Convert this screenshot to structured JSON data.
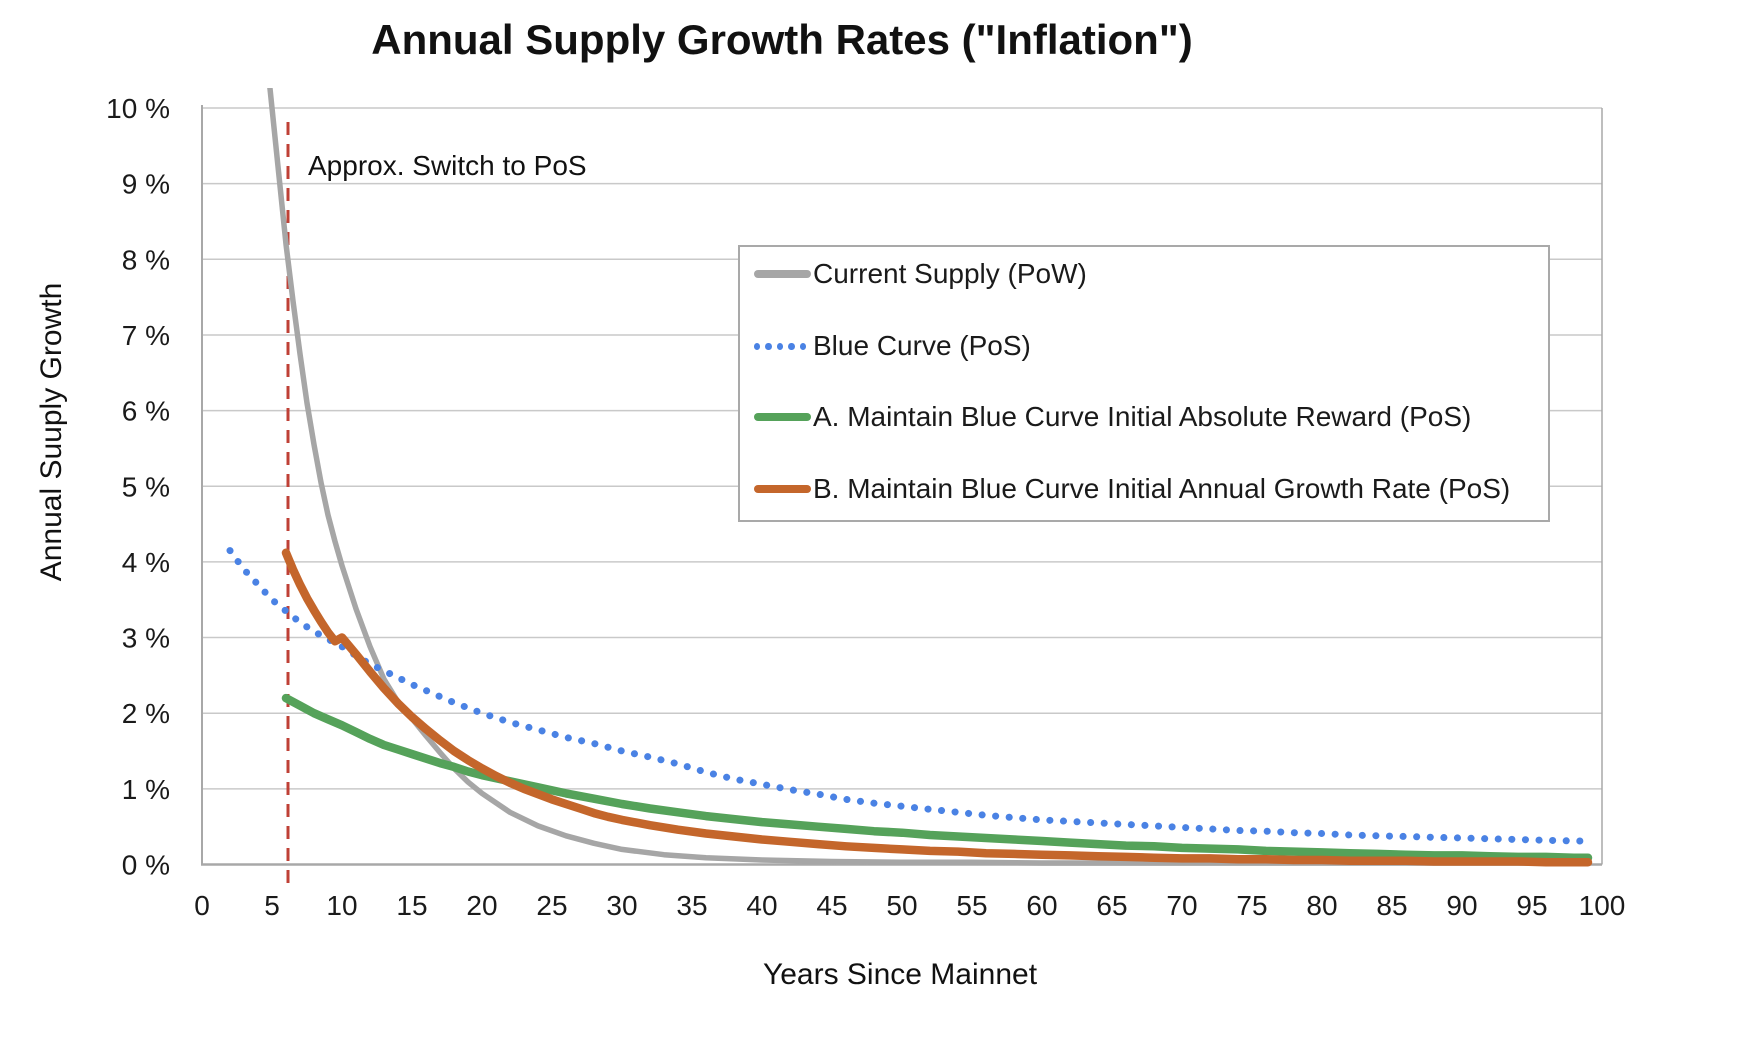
{
  "chart_data": {
    "type": "line",
    "title": "Annual Supply Growth Rates (\"Inflation\")",
    "xlabel": "Years Since Mainnet",
    "ylabel": "Annual Suuply Growth",
    "xlim": [
      0,
      100
    ],
    "ylim": [
      0,
      10
    ],
    "x_ticks": [
      0,
      5,
      10,
      15,
      20,
      25,
      30,
      35,
      40,
      45,
      50,
      55,
      60,
      65,
      70,
      75,
      80,
      85,
      90,
      95,
      100
    ],
    "y_ticks": [
      0,
      1,
      2,
      3,
      4,
      5,
      6,
      7,
      8,
      9,
      10
    ],
    "y_tick_suffix": " %",
    "grid": "horizontal",
    "legend_position": "upper-right-inside",
    "colors": {
      "gridline": "#c9c9c9",
      "axis": "#a8a8a8",
      "text": "#1a1a1a",
      "annotation_line": "#bf4036"
    },
    "annotation": {
      "label": "Approx. Switch to PoS",
      "x": 6,
      "line_style": "dashed-vertical"
    },
    "series": [
      {
        "name": "Current Supply (PoW)",
        "color": "#a6a6a6",
        "style": "solid",
        "stroke_width": 5.5,
        "points": [
          [
            4.75,
            10.45
          ],
          [
            5,
            10.0
          ],
          [
            5.5,
            9.1
          ],
          [
            6,
            8.2
          ],
          [
            6.5,
            7.45
          ],
          [
            7,
            6.75
          ],
          [
            7.5,
            6.1
          ],
          [
            8,
            5.55
          ],
          [
            8.5,
            5.05
          ],
          [
            9,
            4.62
          ],
          [
            9.5,
            4.27
          ],
          [
            10,
            3.95
          ],
          [
            11,
            3.38
          ],
          [
            12,
            2.88
          ],
          [
            13,
            2.45
          ],
          [
            14,
            2.15
          ],
          [
            15,
            1.93
          ],
          [
            16,
            1.7
          ],
          [
            17,
            1.48
          ],
          [
            18,
            1.27
          ],
          [
            19,
            1.09
          ],
          [
            20,
            0.94
          ],
          [
            22,
            0.69
          ],
          [
            24,
            0.51
          ],
          [
            26,
            0.38
          ],
          [
            28,
            0.28
          ],
          [
            30,
            0.2
          ],
          [
            33,
            0.13
          ],
          [
            36,
            0.09
          ],
          [
            40,
            0.06
          ],
          [
            45,
            0.04
          ],
          [
            50,
            0.03
          ],
          [
            55,
            0.03
          ],
          [
            60,
            0.02
          ],
          [
            70,
            0.02
          ],
          [
            80,
            0.02
          ],
          [
            90,
            0.02
          ],
          [
            99,
            0.02
          ]
        ]
      },
      {
        "name": "Blue Curve (PoS)",
        "color": "#4a82e4",
        "style": "dotted",
        "stroke_width": 7,
        "points": [
          [
            2,
            4.15
          ],
          [
            3,
            3.9
          ],
          [
            4,
            3.7
          ],
          [
            5,
            3.5
          ],
          [
            6,
            3.35
          ],
          [
            7,
            3.2
          ],
          [
            8,
            3.08
          ],
          [
            9,
            2.98
          ],
          [
            10,
            2.88
          ],
          [
            11,
            2.76
          ],
          [
            12,
            2.65
          ],
          [
            13,
            2.56
          ],
          [
            14,
            2.47
          ],
          [
            15,
            2.38
          ],
          [
            16,
            2.3
          ],
          [
            17,
            2.22
          ],
          [
            18,
            2.14
          ],
          [
            19,
            2.07
          ],
          [
            20,
            2.0
          ],
          [
            22,
            1.88
          ],
          [
            24,
            1.78
          ],
          [
            26,
            1.68
          ],
          [
            28,
            1.6
          ],
          [
            30,
            1.5
          ],
          [
            32,
            1.42
          ],
          [
            34,
            1.33
          ],
          [
            36,
            1.22
          ],
          [
            38,
            1.13
          ],
          [
            40,
            1.06
          ],
          [
            42,
            0.99
          ],
          [
            44,
            0.93
          ],
          [
            46,
            0.86
          ],
          [
            48,
            0.81
          ],
          [
            50,
            0.77
          ],
          [
            52,
            0.73
          ],
          [
            54,
            0.69
          ],
          [
            56,
            0.65
          ],
          [
            58,
            0.62
          ],
          [
            60,
            0.59
          ],
          [
            62,
            0.57
          ],
          [
            64,
            0.55
          ],
          [
            66,
            0.53
          ],
          [
            68,
            0.51
          ],
          [
            70,
            0.49
          ],
          [
            72,
            0.47
          ],
          [
            74,
            0.45
          ],
          [
            76,
            0.44
          ],
          [
            78,
            0.42
          ],
          [
            80,
            0.41
          ],
          [
            82,
            0.39
          ],
          [
            84,
            0.38
          ],
          [
            86,
            0.37
          ],
          [
            88,
            0.36
          ],
          [
            90,
            0.35
          ],
          [
            92,
            0.34
          ],
          [
            94,
            0.33
          ],
          [
            96,
            0.32
          ],
          [
            98,
            0.31
          ],
          [
            99,
            0.31
          ]
        ]
      },
      {
        "name": "A. Maintain Blue Curve Initial Absolute Reward (PoS)",
        "color": "#55a25a",
        "style": "solid",
        "stroke_width": 8.5,
        "points": [
          [
            6,
            2.2
          ],
          [
            7,
            2.1
          ],
          [
            8,
            2.0
          ],
          [
            9,
            1.92
          ],
          [
            10,
            1.84
          ],
          [
            11,
            1.75
          ],
          [
            12,
            1.66
          ],
          [
            13,
            1.58
          ],
          [
            14,
            1.52
          ],
          [
            15,
            1.46
          ],
          [
            16,
            1.4
          ],
          [
            17,
            1.34
          ],
          [
            18,
            1.29
          ],
          [
            19,
            1.23
          ],
          [
            20,
            1.18
          ],
          [
            22,
            1.1
          ],
          [
            24,
            1.02
          ],
          [
            26,
            0.94
          ],
          [
            28,
            0.87
          ],
          [
            30,
            0.8
          ],
          [
            32,
            0.74
          ],
          [
            34,
            0.69
          ],
          [
            36,
            0.64
          ],
          [
            38,
            0.6
          ],
          [
            40,
            0.56
          ],
          [
            42,
            0.53
          ],
          [
            44,
            0.5
          ],
          [
            46,
            0.47
          ],
          [
            48,
            0.44
          ],
          [
            50,
            0.42
          ],
          [
            52,
            0.39
          ],
          [
            54,
            0.37
          ],
          [
            56,
            0.35
          ],
          [
            58,
            0.33
          ],
          [
            60,
            0.31
          ],
          [
            62,
            0.29
          ],
          [
            64,
            0.27
          ],
          [
            66,
            0.25
          ],
          [
            68,
            0.24
          ],
          [
            70,
            0.22
          ],
          [
            72,
            0.21
          ],
          [
            74,
            0.2
          ],
          [
            76,
            0.18
          ],
          [
            78,
            0.17
          ],
          [
            80,
            0.16
          ],
          [
            82,
            0.15
          ],
          [
            84,
            0.14
          ],
          [
            86,
            0.13
          ],
          [
            88,
            0.12
          ],
          [
            90,
            0.12
          ],
          [
            92,
            0.11
          ],
          [
            94,
            0.1
          ],
          [
            96,
            0.1
          ],
          [
            98,
            0.09
          ],
          [
            99,
            0.09
          ]
        ]
      },
      {
        "name": "B. Maintain Blue Curve Initial Annual Growth Rate (PoS)",
        "color": "#c4662b",
        "style": "solid",
        "stroke_width": 8.5,
        "points": [
          [
            6,
            4.12
          ],
          [
            6.5,
            3.9
          ],
          [
            7,
            3.7
          ],
          [
            7.5,
            3.52
          ],
          [
            8,
            3.36
          ],
          [
            8.5,
            3.21
          ],
          [
            9,
            3.07
          ],
          [
            9.5,
            2.95
          ],
          [
            10,
            3.0
          ],
          [
            11,
            2.78
          ],
          [
            12,
            2.55
          ],
          [
            13,
            2.33
          ],
          [
            14,
            2.13
          ],
          [
            15,
            1.95
          ],
          [
            16,
            1.79
          ],
          [
            17,
            1.64
          ],
          [
            18,
            1.5
          ],
          [
            19,
            1.38
          ],
          [
            20,
            1.27
          ],
          [
            21,
            1.17
          ],
          [
            22,
            1.08
          ],
          [
            23,
            1.0
          ],
          [
            24,
            0.93
          ],
          [
            25,
            0.86
          ],
          [
            26,
            0.8
          ],
          [
            27,
            0.74
          ],
          [
            28,
            0.68
          ],
          [
            29,
            0.63
          ],
          [
            30,
            0.59
          ],
          [
            32,
            0.52
          ],
          [
            34,
            0.46
          ],
          [
            36,
            0.41
          ],
          [
            38,
            0.37
          ],
          [
            40,
            0.33
          ],
          [
            42,
            0.3
          ],
          [
            44,
            0.27
          ],
          [
            46,
            0.24
          ],
          [
            48,
            0.22
          ],
          [
            50,
            0.2
          ],
          [
            52,
            0.18
          ],
          [
            54,
            0.17
          ],
          [
            56,
            0.15
          ],
          [
            58,
            0.14
          ],
          [
            60,
            0.13
          ],
          [
            62,
            0.12
          ],
          [
            64,
            0.11
          ],
          [
            66,
            0.1
          ],
          [
            68,
            0.09
          ],
          [
            70,
            0.08
          ],
          [
            72,
            0.08
          ],
          [
            74,
            0.07
          ],
          [
            76,
            0.07
          ],
          [
            78,
            0.06
          ],
          [
            80,
            0.06
          ],
          [
            82,
            0.05
          ],
          [
            84,
            0.05
          ],
          [
            86,
            0.05
          ],
          [
            88,
            0.04
          ],
          [
            90,
            0.04
          ],
          [
            92,
            0.04
          ],
          [
            94,
            0.04
          ],
          [
            96,
            0.03
          ],
          [
            98,
            0.03
          ],
          [
            99,
            0.03
          ]
        ]
      }
    ]
  }
}
